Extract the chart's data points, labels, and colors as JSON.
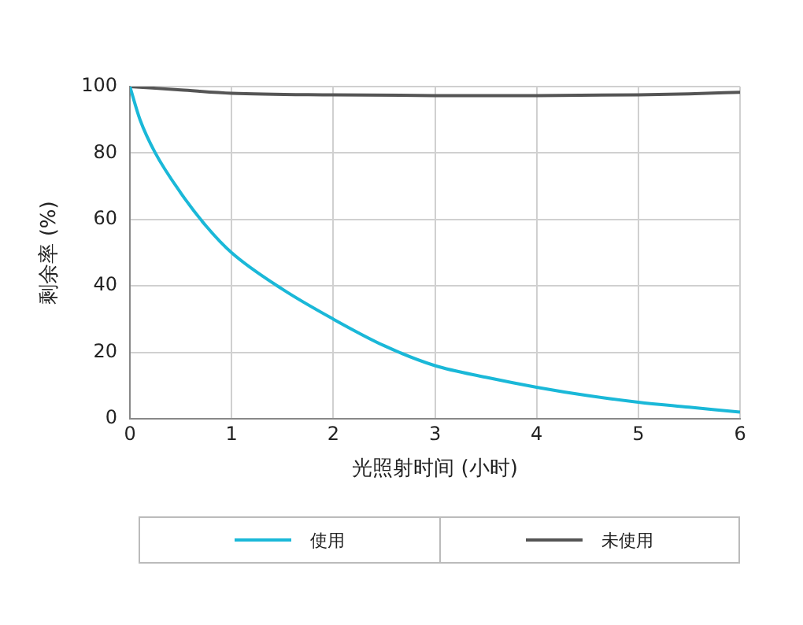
{
  "chart_data": {
    "type": "line",
    "xlabel": "光照射时间 (小时)",
    "ylabel": "剩余率 (%)",
    "xlim": [
      0,
      6
    ],
    "xticks": [
      0,
      1,
      2,
      3,
      4,
      5,
      6
    ],
    "ylim": [
      0,
      100
    ],
    "yticks": [
      0,
      20,
      40,
      60,
      80,
      100
    ],
    "grid": true,
    "legend": "bottom",
    "marker": "none",
    "line_style": "solid",
    "series": [
      {
        "name": "使用",
        "color": "#1ab8d8",
        "x": [
          0,
          0.1,
          0.25,
          0.5,
          0.75,
          1,
          1.5,
          2,
          2.5,
          3,
          3.5,
          4,
          4.5,
          5,
          5.5,
          6
        ],
        "values": [
          100,
          90,
          80,
          68,
          58,
          50,
          39,
          30,
          22,
          16,
          12.5,
          9.5,
          7,
          5,
          3.5,
          2
        ]
      },
      {
        "name": "未使用",
        "color": "#555555",
        "x": [
          0,
          0.5,
          1,
          2,
          3,
          4,
          5,
          5.5,
          6
        ],
        "values": [
          100,
          99,
          98,
          97.5,
          97.3,
          97.3,
          97.5,
          97.8,
          98.3
        ]
      }
    ]
  }
}
